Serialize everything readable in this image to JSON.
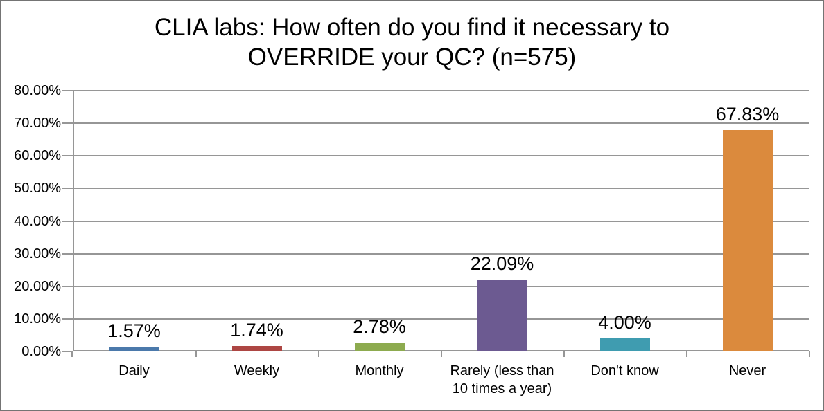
{
  "title": {
    "lines": [
      "CLIA labs: How often do you find it necessary to",
      "OVERRIDE your QC? (n=575)"
    ]
  },
  "chart_data": {
    "type": "bar",
    "title": "CLIA labs: How often do you find it necessary to OVERRIDE your QC? (n=575)",
    "categories": [
      "Daily",
      "Weekly",
      "Monthly",
      "Rarely (less than 10 times a year)",
      "Don't know",
      "Never"
    ],
    "values": [
      1.57,
      1.74,
      2.78,
      22.09,
      4.0,
      67.83
    ],
    "data_labels": [
      "1.57%",
      "1.74%",
      "2.78%",
      "22.09%",
      "4.00%",
      "67.83%"
    ],
    "bar_colors": [
      "#4B79AB",
      "#AD4643",
      "#8DAB4F",
      "#6C5A91",
      "#3F9CB0",
      "#DB8A3D"
    ],
    "xlabel": "",
    "ylabel": "",
    "ylim": [
      0,
      80
    ],
    "ytick_step": 10,
    "ytick_labels": [
      "0.00%",
      "10.00%",
      "20.00%",
      "30.00%",
      "40.00%",
      "50.00%",
      "60.00%",
      "70.00%",
      "80.00%"
    ],
    "grid": true,
    "legend": "none"
  },
  "colors": {
    "gridline": "#969696",
    "axis": "#969696",
    "frame_border": "#747474",
    "text": "#000000",
    "background": "#FFFFFF"
  }
}
